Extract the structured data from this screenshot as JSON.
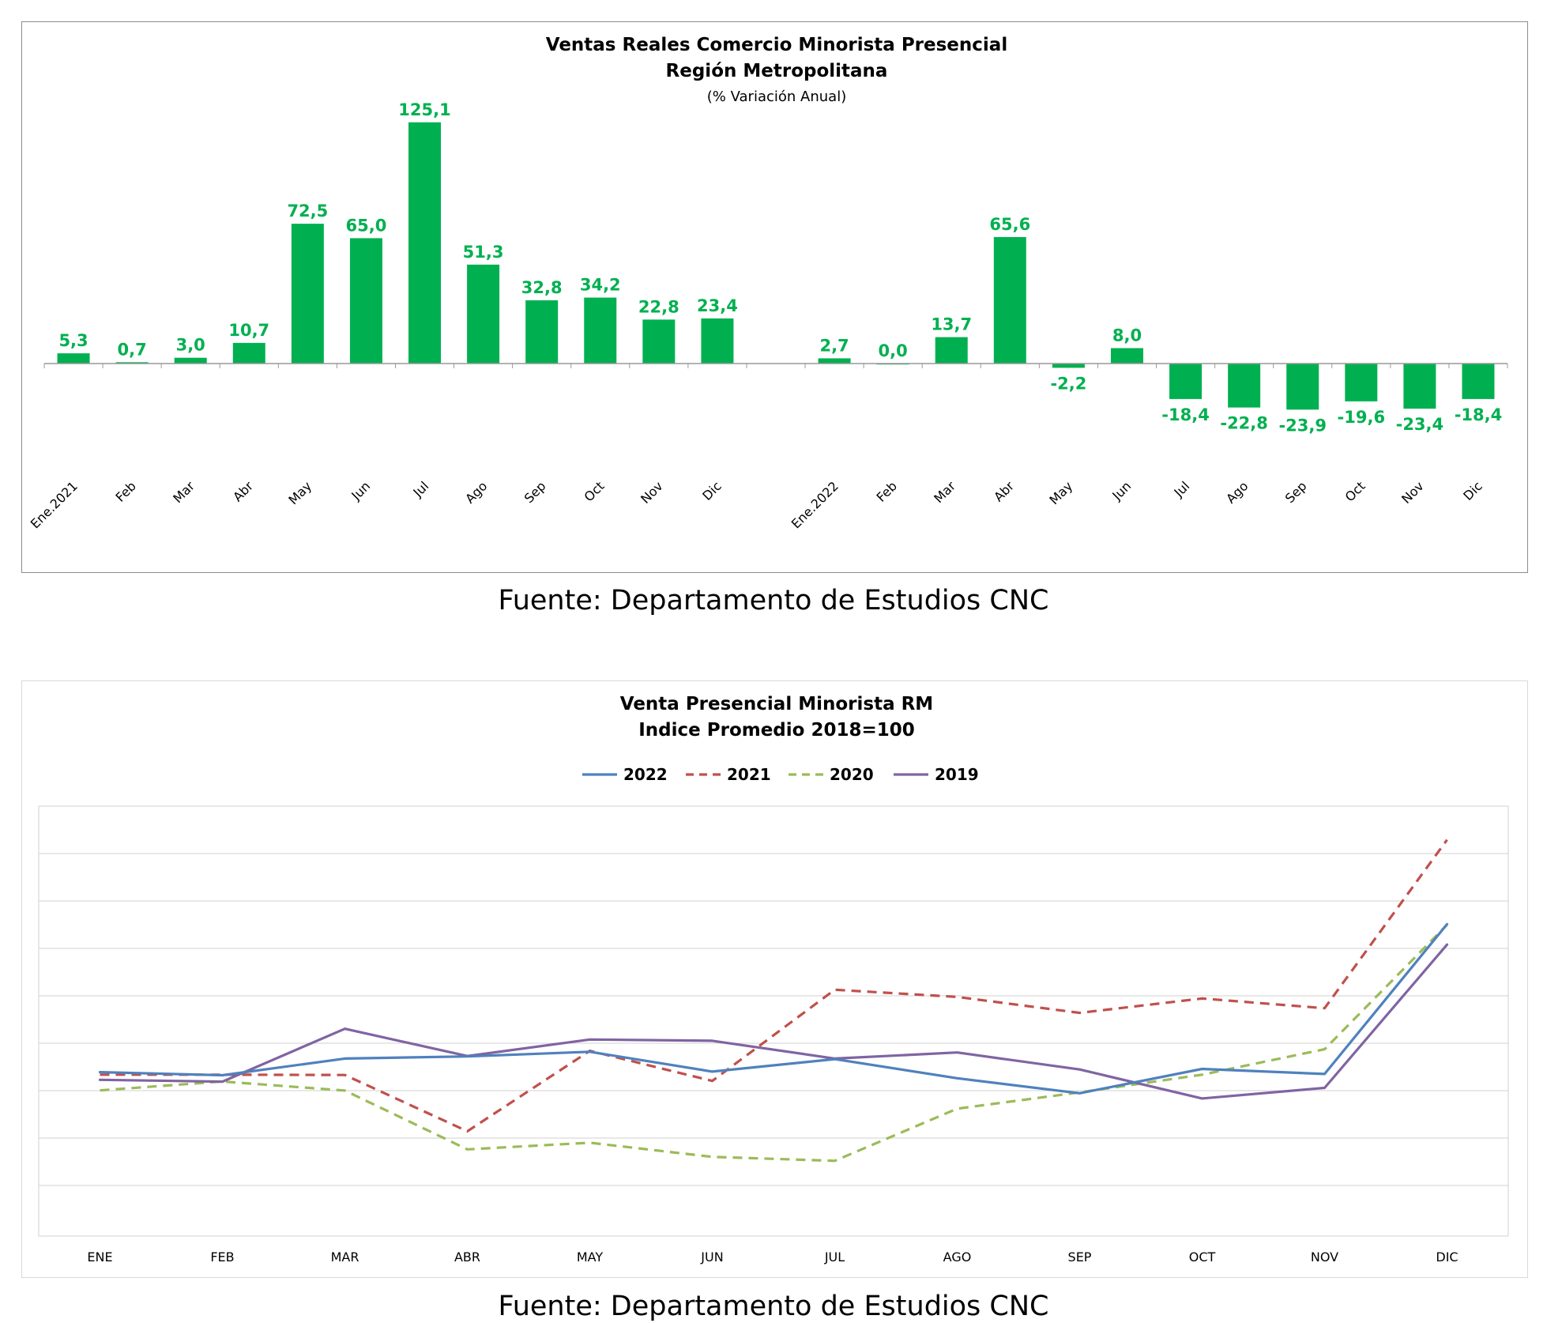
{
  "chart1": {
    "title": "Ventas Reales Comercio Minorista Presencial",
    "subtitle": "Región Metropolitana",
    "unit": "(% Variación Anual)",
    "source": "Fuente: Departamento de Estudios CNC",
    "bar_color": "#00b050"
  },
  "chart2": {
    "title": "Venta Presencial Minorista RM",
    "subtitle": "Indice Promedio 2018=100",
    "source": "Fuente: Departamento de Estudios CNC",
    "gridline_color": "#d9d9d9"
  },
  "chart_data": [
    {
      "type": "bar",
      "title": "Ventas Reales Comercio Minorista Presencial",
      "subtitle": "Región Metropolitana",
      "ylabel": "(% Variación Anual)",
      "categories": [
        "Ene.2021",
        "Feb",
        "Mar",
        "Abr",
        "May",
        "Jun",
        "Jul",
        "Ago",
        "Sep",
        "Oct",
        "Nov",
        "Dic",
        "",
        "Ene.2022",
        "Feb",
        "Mar",
        "Abr",
        "May",
        "Jun",
        "Jul",
        "Ago",
        "Sep",
        "Oct",
        "Nov",
        "Dic"
      ],
      "values": [
        5.3,
        0.7,
        3.0,
        10.7,
        72.5,
        65.0,
        125.1,
        51.3,
        32.8,
        34.2,
        22.8,
        23.4,
        null,
        2.7,
        0.0,
        13.7,
        65.6,
        -2.2,
        8.0,
        -18.4,
        -22.8,
        -23.9,
        -19.6,
        -23.4,
        -18.4
      ],
      "labels": [
        "5,3",
        "0,7",
        "3,0",
        "10,7",
        "72,5",
        "65,0",
        "125,1",
        "51,3",
        "32,8",
        "34,2",
        "22,8",
        "23,4",
        "",
        "2,7",
        "0,0",
        "13,7",
        "65,6",
        "-2,2",
        "8,0",
        "-18,4",
        "-22,8",
        "-23,9",
        "-19,6",
        "-23,4",
        "-18,4"
      ],
      "ylim": [
        -60,
        130
      ],
      "grid": false,
      "legend": "none"
    },
    {
      "type": "line",
      "title": "Venta Presencial Minorista RM",
      "subtitle": "Indice Promedio 2018=100",
      "categories": [
        "ENE",
        "FEB",
        "MAR",
        "ABR",
        "MAY",
        "JUN",
        "JUL",
        "AGO",
        "SEP",
        "OCT",
        "NOV",
        "DIC"
      ],
      "series": [
        {
          "name": "2022",
          "color": "#4f81bd",
          "dashed": false,
          "values": [
            91.5,
            89.8,
            99.1,
            100.3,
            102.9,
            91.8,
            98.8,
            88.1,
            79.7,
            93.3,
            90.5,
            174.1
          ]
        },
        {
          "name": "2021",
          "color": "#c0504d",
          "dashed": true,
          "values": [
            90.1,
            90.1,
            89.9,
            58.5,
            103.4,
            86.6,
            137.5,
            133.5,
            124.6,
            132.6,
            127.2,
            221.2
          ]
        },
        {
          "name": "2020",
          "color": "#9bbb59",
          "dashed": true,
          "values": [
            81.3,
            86.3,
            81.2,
            48.4,
            52.1,
            44.2,
            42.0,
            71.1,
            80.2,
            90.1,
            104.3,
            173.8
          ]
        },
        {
          "name": "2019",
          "color": "#8064a2",
          "dashed": false,
          "values": [
            87.2,
            86.2,
            115.7,
            100.5,
            109.7,
            109.0,
            99.1,
            102.5,
            93.0,
            76.8,
            82.7,
            162.7
          ]
        }
      ],
      "grid": true,
      "legend": "top"
    }
  ]
}
